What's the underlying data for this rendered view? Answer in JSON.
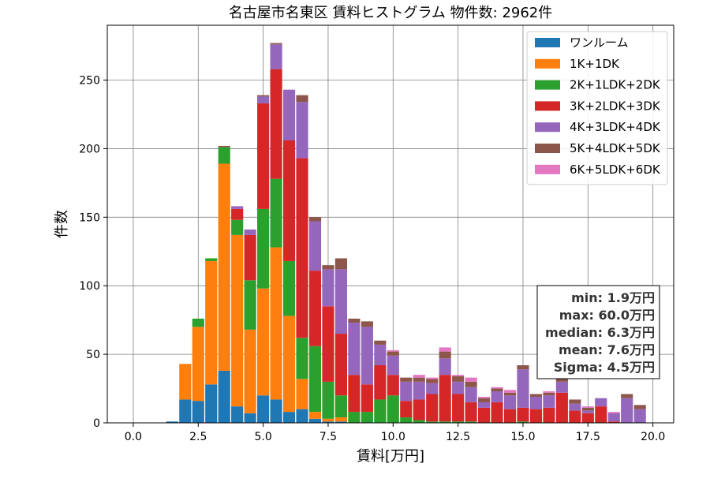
{
  "chart_data": {
    "type": "bar",
    "stacked": true,
    "title": "名古屋市名東区 賃料ヒストグラム  物件数: 2962件",
    "xlabel": "賃料[万円]",
    "ylabel": "件数",
    "xlim": [
      -1.0,
      20.8
    ],
    "ylim": [
      0,
      290
    ],
    "xticks": [
      0.0,
      2.5,
      5.0,
      7.5,
      10.0,
      12.5,
      15.0,
      17.5,
      20.0
    ],
    "xtick_labels": [
      "0.0",
      "2.5",
      "5.0",
      "7.5",
      "10.0",
      "12.5",
      "15.0",
      "17.5",
      "20.0"
    ],
    "yticks": [
      0,
      50,
      100,
      150,
      200,
      250
    ],
    "ytick_labels": [
      "0",
      "50",
      "100",
      "150",
      "200",
      "250"
    ],
    "grid": true,
    "legend_position": "top-right",
    "bin_width": 0.5,
    "x": [
      1.5,
      2.0,
      2.5,
      3.0,
      3.5,
      4.0,
      4.5,
      5.0,
      5.5,
      6.0,
      6.5,
      7.0,
      7.5,
      8.0,
      8.5,
      9.0,
      9.5,
      10.0,
      10.5,
      11.0,
      11.5,
      12.0,
      12.5,
      13.0,
      13.5,
      14.0,
      14.5,
      15.0,
      15.5,
      16.0,
      16.5,
      17.0,
      17.5,
      18.0,
      18.5,
      19.0,
      19.5
    ],
    "series": [
      {
        "name": "ワンルーム",
        "color": "#1f77b4",
        "values": [
          1,
          17,
          16,
          28,
          38,
          12,
          7,
          20,
          17,
          8,
          10,
          3,
          1,
          1,
          0,
          0,
          0,
          0,
          0,
          0,
          0,
          0,
          0,
          0,
          0,
          0,
          0,
          0,
          0,
          0,
          0,
          0,
          0,
          0,
          0,
          0,
          0
        ]
      },
      {
        "name": "1K+1DK",
        "color": "#ff7f0e",
        "values": [
          0,
          26,
          54,
          90,
          151,
          125,
          61,
          78,
          111,
          70,
          22,
          5,
          2,
          3,
          0,
          0,
          0,
          0,
          0,
          0,
          0,
          0,
          0,
          0,
          0,
          0,
          0,
          0,
          0,
          0,
          0,
          0,
          0,
          0,
          0,
          0,
          0
        ]
      },
      {
        "name": "2K+1LDK+2DK",
        "color": "#2ca02c",
        "values": [
          0,
          0,
          6,
          2,
          12,
          11,
          36,
          58,
          50,
          40,
          30,
          48,
          27,
          16,
          8,
          8,
          17,
          20,
          4,
          2,
          1,
          1,
          1,
          1,
          0,
          0,
          0,
          1,
          0,
          0,
          0,
          0,
          0,
          0,
          0,
          0,
          0
        ]
      },
      {
        "name": "3K+2LDK+3DK",
        "color": "#d62728",
        "values": [
          0,
          0,
          0,
          0,
          0,
          8,
          33,
          77,
          80,
          88,
          131,
          55,
          55,
          45,
          27,
          20,
          25,
          15,
          12,
          15,
          20,
          34,
          20,
          14,
          11,
          15,
          10,
          10,
          10,
          11,
          22,
          9,
          7,
          12,
          1,
          0,
          0
        ]
      },
      {
        "name": "4K+3LDK+4DK",
        "color": "#9467bd",
        "values": [
          0,
          0,
          0,
          0,
          0,
          2,
          4,
          5,
          18,
          37,
          41,
          36,
          27,
          47,
          38,
          42,
          15,
          14,
          14,
          13,
          8,
          12,
          9,
          11,
          4,
          8,
          10,
          28,
          9,
          9,
          8,
          5,
          2,
          6,
          6,
          18,
          10
        ]
      },
      {
        "name": "5K+4LDK+5DK",
        "color": "#8c564b",
        "values": [
          0,
          0,
          0,
          0,
          1,
          0,
          0,
          1,
          1,
          0,
          5,
          3,
          3,
          8,
          3,
          4,
          3,
          3,
          3,
          3,
          3,
          5,
          4,
          4,
          3,
          2,
          2,
          3,
          2,
          2,
          2,
          3,
          2,
          0,
          0,
          3,
          3
        ]
      },
      {
        "name": "6K+5LDK+6DK",
        "color": "#e377c2",
        "values": [
          0,
          0,
          0,
          0,
          0,
          0,
          0,
          0,
          0,
          0,
          0,
          0,
          0,
          0,
          0,
          0,
          0,
          1,
          0,
          2,
          1,
          3,
          1,
          3,
          1,
          1,
          2,
          0,
          0,
          1,
          0,
          0,
          1,
          0,
          1,
          0,
          0
        ]
      }
    ],
    "stats": [
      "min: 1.9万円",
      "max: 60.0万円",
      "median: 6.3万円",
      "mean: 7.6万円",
      "Sigma: 4.5万円"
    ]
  }
}
